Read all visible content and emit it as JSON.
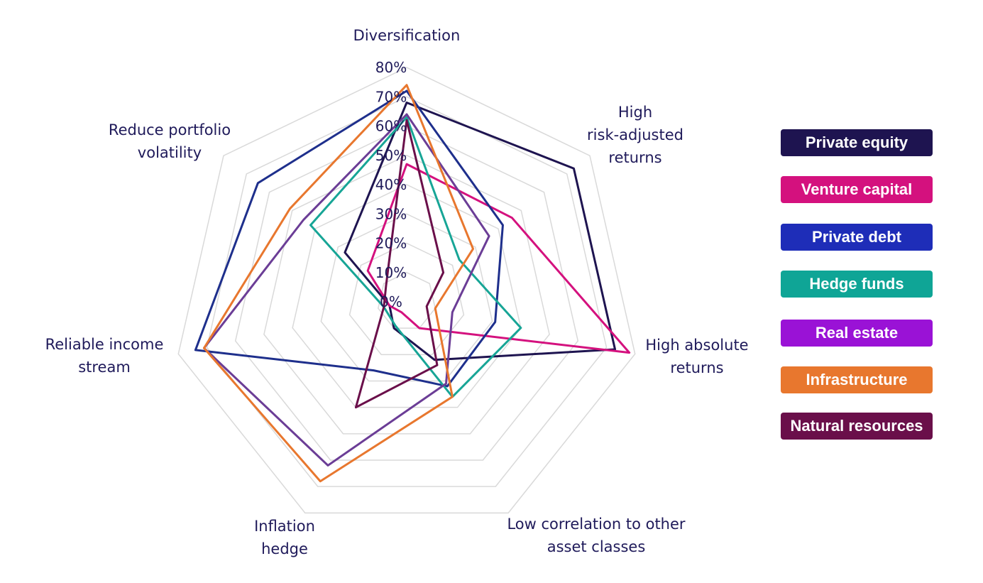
{
  "chart_data": {
    "type": "radar",
    "axes": [
      {
        "label_lines": [
          "Diversification"
        ]
      },
      {
        "label_lines": [
          "High",
          "risk-adjusted",
          "returns"
        ]
      },
      {
        "label_lines": [
          "High absolute",
          "returns"
        ]
      },
      {
        "label_lines": [
          "Low correlation to other",
          "asset classes"
        ]
      },
      {
        "label_lines": [
          "Inflation",
          "hedge"
        ]
      },
      {
        "label_lines": [
          "Reliable income",
          "stream"
        ]
      },
      {
        "label_lines": [
          "Reduce portfolio",
          "volatility"
        ]
      }
    ],
    "ticks": [
      "0%",
      "10%",
      "20%",
      "30%",
      "40%",
      "50%",
      "60%",
      "70%",
      "80%"
    ],
    "range": [
      0,
      80
    ],
    "grid": true,
    "legend_position": "right",
    "series": [
      {
        "name": "Private equity",
        "color": "#1e1450",
        "values": [
          68,
          73,
          73,
          22,
          10,
          6,
          27
        ]
      },
      {
        "name": "Venture capital",
        "color": "#d4117e",
        "values": [
          47,
          46,
          78,
          10,
          4,
          6,
          17
        ]
      },
      {
        "name": "Private debt",
        "color": "#1e2f8c",
        "values": [
          72,
          42,
          31,
          32,
          26,
          74,
          65
        ]
      },
      {
        "name": "Hedge funds",
        "color": "#17a596",
        "values": [
          63,
          23,
          40,
          36,
          9,
          8,
          42
        ]
      },
      {
        "name": "Real estate",
        "color": "#6b3d96",
        "values": [
          64,
          36,
          16,
          31,
          62,
          71,
          45
        ]
      },
      {
        "name": "Infrastructure",
        "color": "#e8772e",
        "values": [
          74,
          29,
          10,
          36,
          68,
          71,
          51
        ]
      },
      {
        "name": "Natural resources",
        "color": "#6a0f4a",
        "values": [
          62,
          16,
          7,
          24,
          40,
          8,
          9
        ]
      }
    ]
  },
  "legend": [
    {
      "label": "Private equity",
      "bg": "#1e1450"
    },
    {
      "label": "Venture capital",
      "bg": "#d4117e"
    },
    {
      "label": "Private debt",
      "bg": "#1e2db8"
    },
    {
      "label": "Hedge funds",
      "bg": "#0fa596"
    },
    {
      "label": "Real estate",
      "bg": "#9a12d6"
    },
    {
      "label": "Infrastructure",
      "bg": "#e8772e"
    },
    {
      "label": "Natural resources",
      "bg": "#6a0f4a"
    }
  ]
}
